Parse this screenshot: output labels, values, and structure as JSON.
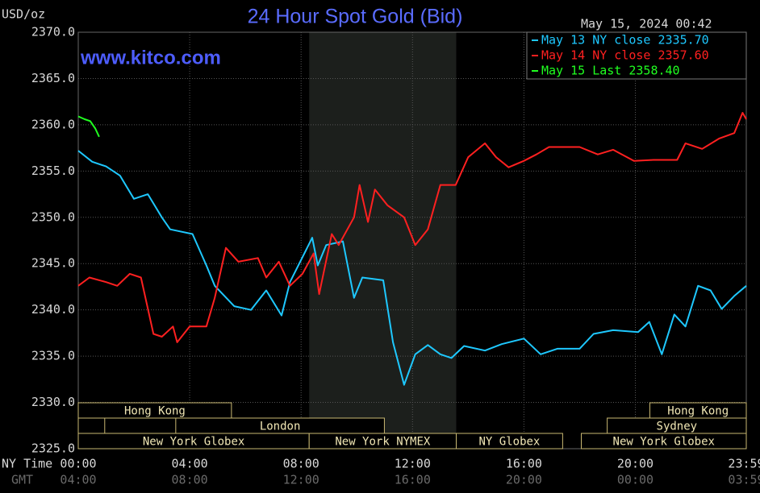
{
  "chart_data": {
    "type": "line",
    "title": "24 Hour Spot Gold (Bid)",
    "subtitle": "www.kitco.com",
    "timestamp": "May 15, 2024 00:42",
    "y_label": "USD/oz",
    "x_label": "NY Time",
    "x2_label": "GMT",
    "xlim": [
      0,
      23.983
    ],
    "ylim": [
      2325,
      2370
    ],
    "yticks": [
      {
        "value": 2325,
        "label": "2325.0"
      },
      {
        "value": 2330,
        "label": "2330.0"
      },
      {
        "value": 2335,
        "label": "2335.0"
      },
      {
        "value": 2340,
        "label": "2340.0"
      },
      {
        "value": 2345,
        "label": "2345.0"
      },
      {
        "value": 2350,
        "label": "2350.0"
      },
      {
        "value": 2355,
        "label": "2355.0"
      },
      {
        "value": 2360,
        "label": "2360.0"
      },
      {
        "value": 2365,
        "label": "2365.0"
      },
      {
        "value": 2370,
        "label": "2370.0"
      }
    ],
    "xticks": [
      {
        "value": 0,
        "label": "00:00"
      },
      {
        "value": 4,
        "label": "04:00"
      },
      {
        "value": 8,
        "label": "08:00"
      },
      {
        "value": 12,
        "label": "12:00"
      },
      {
        "value": 16,
        "label": "16:00"
      },
      {
        "value": 20,
        "label": "20:00"
      },
      {
        "value": 23.983,
        "label": "23:59"
      }
    ],
    "x2ticks": [
      {
        "value": 0,
        "label": "04:00"
      },
      {
        "value": 4,
        "label": "08:00"
      },
      {
        "value": 8,
        "label": "12:00"
      },
      {
        "value": 12,
        "label": "16:00"
      },
      {
        "value": 16,
        "label": "20:00"
      },
      {
        "value": 20,
        "label": "00:00"
      },
      {
        "value": 23.983,
        "label": "03:59"
      }
    ],
    "grid": true,
    "legend": "top-right",
    "highlight": {
      "start": 8.29,
      "end": 13.57
    },
    "session_rows": [
      [
        {
          "label": "Hong Kong",
          "start": 0,
          "end": 5.5
        },
        {
          "label": "Hong Kong",
          "start": 20.52,
          "end": 23.983
        }
      ],
      [
        {
          "label": null,
          "start": 0,
          "end": 0.95
        },
        {
          "label": "London",
          "start": 3.5,
          "end": 10.99
        },
        {
          "label": "Sydney",
          "start": 18.99,
          "end": 23.983
        }
      ],
      [
        {
          "label": "New York Globex",
          "start": 0,
          "end": 8.29
        },
        {
          "label": "New York NYMEX",
          "start": 8.29,
          "end": 13.57
        },
        {
          "label": "NY Globex",
          "start": 13.57,
          "end": 17.39
        },
        {
          "label": "New York Globex",
          "start": 18.06,
          "end": 23.983
        }
      ]
    ],
    "series": [
      {
        "name": "May 13 NY close 2335.70",
        "color": "#1ec8ff",
        "x": [
          0,
          0.5,
          1,
          1.5,
          2,
          2.5,
          3,
          3.3,
          4.1,
          4.6,
          4.9,
          5.6,
          6.2,
          6.75,
          7.3,
          7.6,
          8.4,
          8.6,
          8.9,
          9.5,
          9.9,
          10.2,
          10.95,
          11.3,
          11.7,
          12.1,
          12.55,
          13,
          13.4,
          13.85,
          14.6,
          15.2,
          16,
          16.6,
          17.2,
          18,
          18.5,
          19.2,
          20.1,
          20.5,
          20.95,
          21.4,
          21.8,
          22.25,
          22.7,
          23.1,
          23.55,
          23.983
        ],
        "values": [
          2357.2,
          2356,
          2355.5,
          2354.5,
          2352,
          2352.5,
          2350,
          2348.7,
          2348.2,
          2344.8,
          2342.6,
          2340.4,
          2340,
          2342.1,
          2339.4,
          2343,
          2347.8,
          2344.8,
          2347,
          2347.4,
          2341.3,
          2343.5,
          2343.2,
          2336.5,
          2331.9,
          2335.2,
          2336.2,
          2335.2,
          2334.8,
          2336.1,
          2335.6,
          2336.3,
          2336.9,
          2335.2,
          2335.8,
          2335.8,
          2337.4,
          2337.8,
          2337.6,
          2338.7,
          2335.2,
          2339.5,
          2338.2,
          2342.6,
          2342.1,
          2340.1,
          2341.5,
          2342.6
        ]
      },
      {
        "name": "May 14 NY close 2357.60",
        "color": "#ff2020",
        "x": [
          0,
          0.4,
          1,
          1.4,
          1.85,
          2.25,
          2.7,
          3,
          3.4,
          3.55,
          4,
          4.6,
          4.9,
          5.3,
          5.75,
          6.45,
          6.75,
          7.2,
          7.6,
          8.05,
          8.45,
          8.65,
          9.1,
          9.35,
          9.9,
          10.1,
          10.4,
          10.65,
          11.1,
          11.7,
          12.1,
          12.55,
          13,
          13.55,
          14,
          14.6,
          15,
          15.45,
          16,
          16.45,
          16.9,
          18,
          18.65,
          19.2,
          19.95,
          20.65,
          21.5,
          21.8,
          22.4,
          23,
          23.55,
          23.85,
          23.983
        ],
        "values": [
          2342.6,
          2343.5,
          2343,
          2342.6,
          2343.9,
          2343.5,
          2337.4,
          2337.1,
          2338.2,
          2336.5,
          2338.2,
          2338.2,
          2341.3,
          2346.7,
          2345.2,
          2345.6,
          2343.5,
          2345.2,
          2342.6,
          2343.9,
          2346.1,
          2341.7,
          2348.2,
          2347,
          2350,
          2353.5,
          2349.5,
          2353,
          2351.3,
          2350,
          2347,
          2348.7,
          2353.5,
          2353.5,
          2356.5,
          2358,
          2356.5,
          2355.4,
          2356.1,
          2356.8,
          2357.6,
          2357.6,
          2356.8,
          2357.3,
          2356.1,
          2356.2,
          2356.2,
          2358,
          2357.4,
          2358.5,
          2359.1,
          2361.3,
          2360.6
        ]
      },
      {
        "name": "May 15 Last 2358.40",
        "color": "#20ff20",
        "x": [
          0,
          0.23,
          0.43,
          0.61,
          0.75
        ],
        "values": [
          2360.9,
          2360.6,
          2360.4,
          2359.6,
          2358.7
        ]
      }
    ]
  }
}
